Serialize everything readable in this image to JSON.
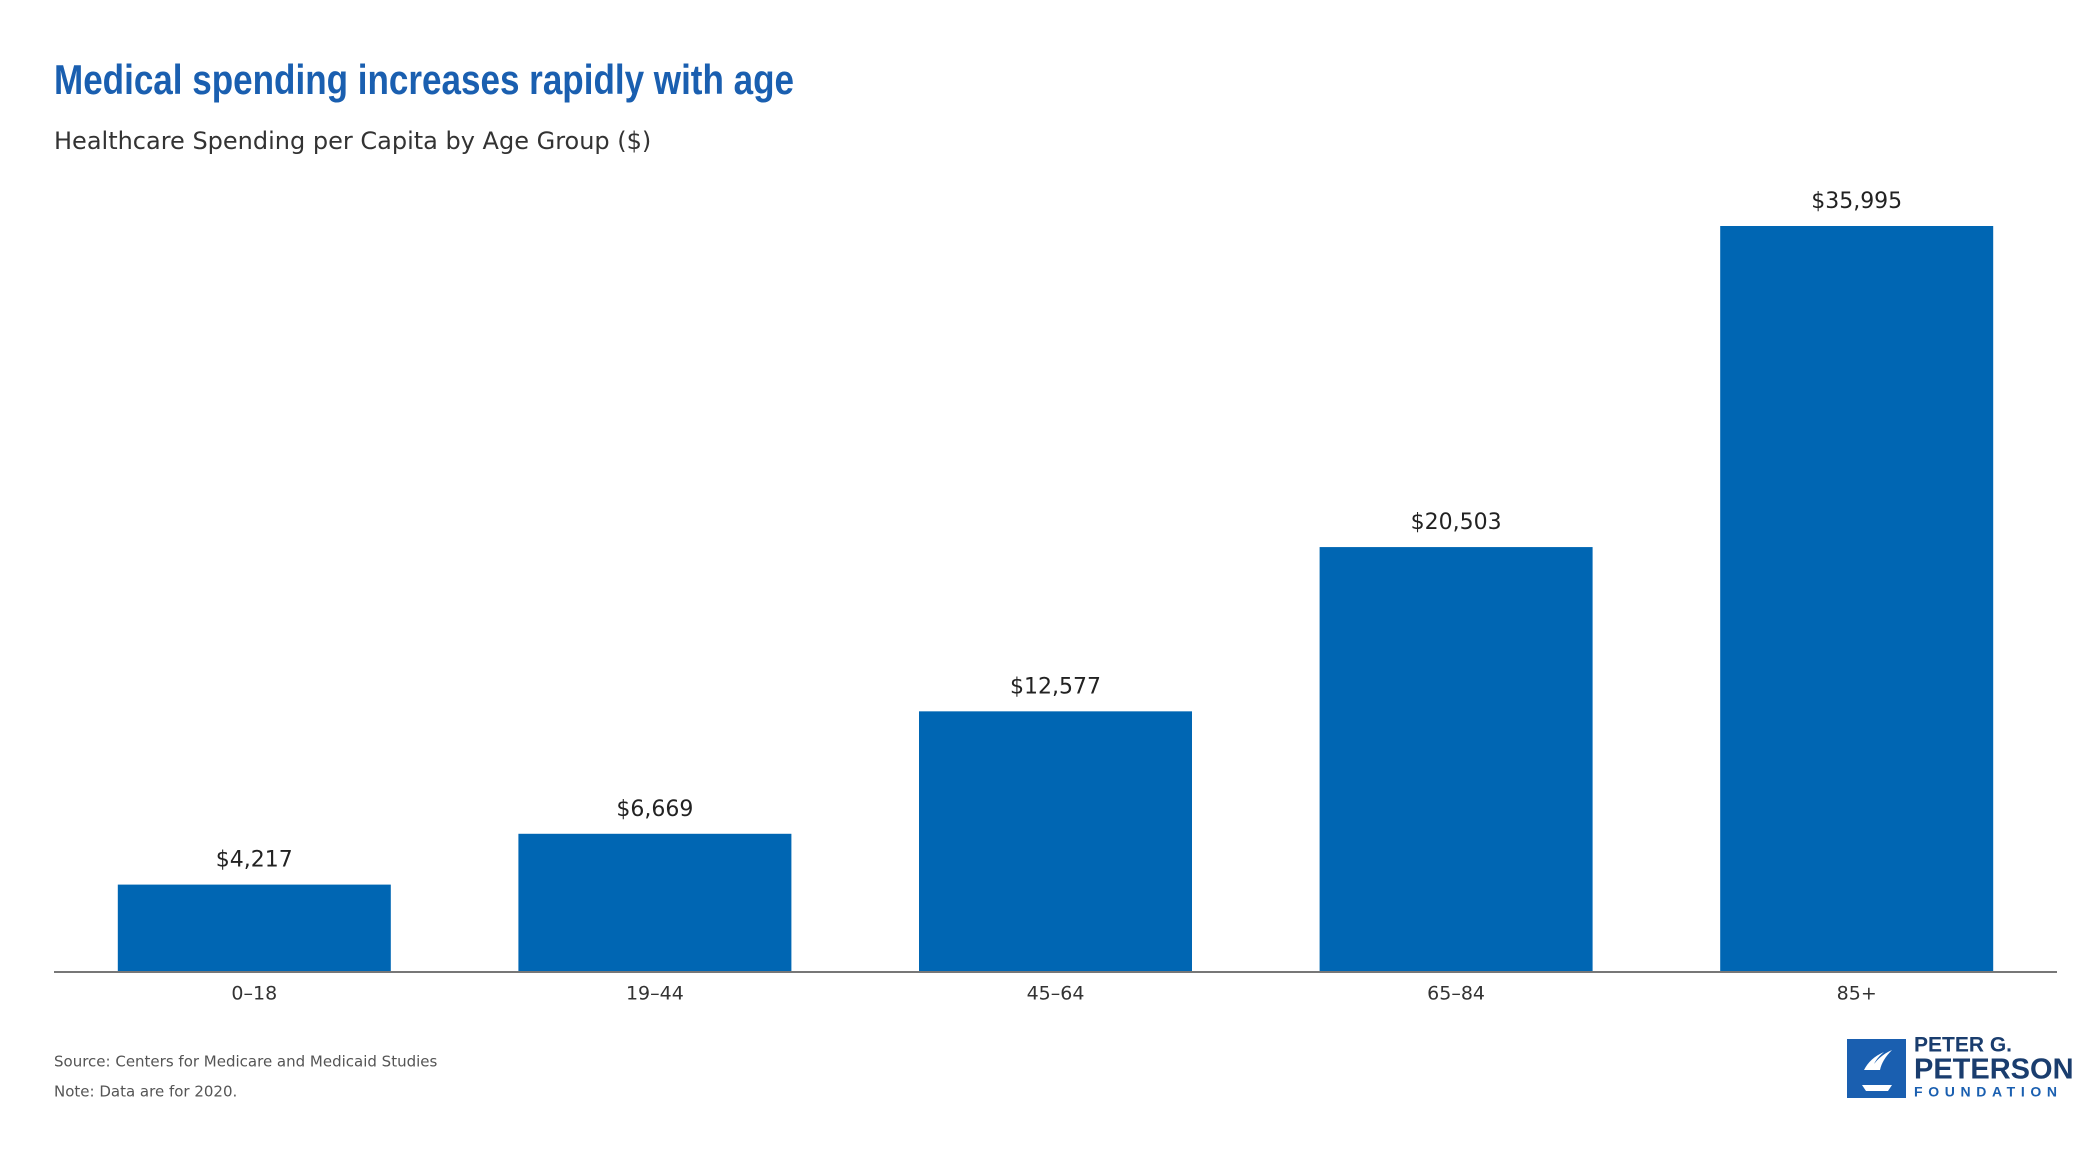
{
  "chart_data": {
    "type": "bar",
    "title": "Medical spending increases rapidly with age",
    "subtitle": "Healthcare Spending per Capita by Age Group ($)",
    "categories": [
      "0–18",
      "19–44",
      "45–64",
      "65–84",
      "85+"
    ],
    "values": [
      4217,
      6669,
      12577,
      20503,
      35995
    ],
    "value_labels": [
      "$4,217",
      "$6,669",
      "$12,577",
      "$20,503",
      "$35,995"
    ],
    "color": "#0066b3",
    "source": "Source: Centers for Medicare and Medicaid Studies",
    "note": "Note: Data are for 2020."
  },
  "logo": {
    "line1": "PETER G.",
    "line2": "PETERSON",
    "line3": "FOUNDATION"
  }
}
